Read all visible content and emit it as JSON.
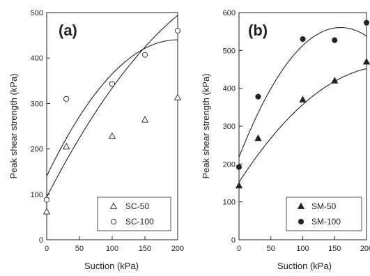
{
  "chart_data": [
    {
      "type": "scatter",
      "panel_label": "(a)",
      "xlabel": "Suction (kPa)",
      "ylabel": "Peak shear strength  (kPa)",
      "xlim": [
        0,
        200
      ],
      "ylim": [
        0,
        500
      ],
      "xticks": [
        "0",
        "50",
        "100",
        "150",
        "200"
      ],
      "yticks": [
        "0",
        "100",
        "200",
        "300",
        "400",
        "500"
      ],
      "grid": false,
      "legend_position": "bottom-right",
      "series": [
        {
          "name": "SC-50",
          "marker": "open-triangle",
          "x": [
            0,
            30,
            100,
            150,
            200
          ],
          "y": [
            62,
            205,
            228,
            264,
            313
          ],
          "fit": [
            0.004,
            2.8,
            94
          ]
        },
        {
          "name": "SC-100",
          "marker": "open-circle",
          "x": [
            0,
            30,
            100,
            150,
            200
          ],
          "y": [
            88,
            310,
            343,
            407,
            460
          ],
          "fit": [
            0.0075,
            3.0,
            140
          ]
        }
      ]
    },
    {
      "type": "scatter",
      "panel_label": "(b)",
      "xlabel": "Suction (kPa)",
      "ylabel": "Peak shear strength  (kPa)",
      "xlim": [
        0,
        200
      ],
      "ylim": [
        0,
        600
      ],
      "xticks": [
        "0",
        "50",
        "100",
        "150",
        "200"
      ],
      "yticks": [
        "0",
        "100",
        "200",
        "300",
        "400",
        "500",
        "600"
      ],
      "grid": false,
      "legend_position": "bottom-right",
      "series": [
        {
          "name": "SM-50",
          "marker": "filled-triangle",
          "x": [
            0,
            30,
            100,
            150,
            200
          ],
          "y": [
            143,
            268,
            370,
            420,
            470
          ],
          "fit": [
            0.0055,
            2.6,
            152
          ]
        },
        {
          "name": "SM-100",
          "marker": "filled-circle",
          "x": [
            0,
            30,
            100,
            150,
            200
          ],
          "y": [
            192,
            378,
            530,
            527,
            573
          ],
          "fit": [
            0.0135,
            4.3,
            218
          ]
        }
      ]
    }
  ]
}
